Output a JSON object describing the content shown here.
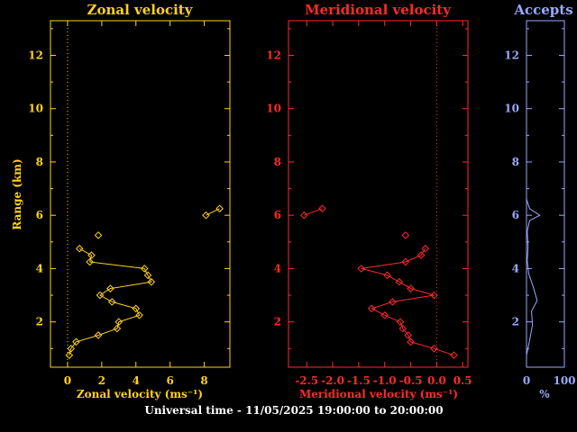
{
  "footer": "Universal time - 11/05/2025 19:00:00 to 20:00:00",
  "colors": {
    "zonal": "#ffd21e",
    "meridional": "#ff2a2a",
    "accepts": "#9aa8ff",
    "background": "#000000"
  },
  "chart_data": [
    {
      "type": "line",
      "title": "Zonal velocity",
      "xlabel": "Zonal velocity (ms⁻¹)",
      "ylabel": "Range (km)",
      "xlim": [
        -1,
        9.5
      ],
      "ylim": [
        0.3,
        13.3
      ],
      "xticks": [
        0,
        2,
        4,
        6,
        8
      ],
      "yticks": [
        2,
        4,
        6,
        8,
        10,
        12
      ],
      "zero_line": "dotted",
      "series": [
        {
          "points": [
            [
              0.1,
              0.75
            ],
            [
              0.2,
              1.0
            ],
            [
              0.5,
              1.25
            ],
            [
              1.8,
              1.5
            ],
            [
              2.9,
              1.75
            ],
            [
              3.0,
              2.0
            ],
            [
              4.2,
              2.25
            ],
            [
              4.0,
              2.5
            ],
            [
              2.6,
              2.75
            ],
            [
              1.9,
              3.0
            ],
            [
              2.5,
              3.25
            ],
            [
              4.9,
              3.5
            ],
            [
              4.7,
              3.75
            ],
            [
              4.5,
              4.0
            ],
            [
              1.3,
              4.25
            ],
            [
              1.4,
              4.5
            ],
            [
              0.7,
              4.75
            ]
          ],
          "isolated": [
            [
              1.8,
              5.25
            ]
          ],
          "upper": [
            [
              8.1,
              6.0
            ],
            [
              8.9,
              6.25
            ]
          ]
        }
      ]
    },
    {
      "type": "line",
      "title": "Meridional velocity",
      "xlabel": "Meridional velocity (ms⁻¹)",
      "ylabel": "",
      "xlim": [
        -2.85,
        0.6
      ],
      "ylim": [
        0.3,
        13.3
      ],
      "xticks": [
        -2.5,
        -2.0,
        -1.5,
        -1.0,
        -0.5,
        0.0,
        0.5
      ],
      "xticklabels": [
        "-2.5",
        "-2.0",
        "-1.5",
        "-1.0",
        "-0.5",
        "0.0",
        "0.5"
      ],
      "yticks": [
        2,
        4,
        6,
        8,
        10,
        12
      ],
      "zero_line": "dotted",
      "series": [
        {
          "points": [
            [
              0.33,
              0.75
            ],
            [
              -0.05,
              1.0
            ],
            [
              -0.5,
              1.25
            ],
            [
              -0.55,
              1.5
            ],
            [
              -0.65,
              1.75
            ],
            [
              -0.7,
              2.0
            ],
            [
              -1.0,
              2.25
            ],
            [
              -1.25,
              2.5
            ],
            [
              -0.85,
              2.75
            ],
            [
              -0.05,
              3.0
            ],
            [
              -0.5,
              3.25
            ],
            [
              -0.72,
              3.5
            ],
            [
              -0.95,
              3.75
            ],
            [
              -1.45,
              4.0
            ],
            [
              -0.6,
              4.25
            ],
            [
              -0.3,
              4.5
            ],
            [
              -0.22,
              4.75
            ]
          ],
          "isolated": [
            [
              -0.6,
              5.25
            ]
          ],
          "upper": [
            [
              -2.55,
              6.0
            ],
            [
              -2.2,
              6.25
            ]
          ]
        }
      ]
    },
    {
      "type": "line",
      "title": "Accepts",
      "xlabel": "%",
      "ylabel": "",
      "xlim": [
        0,
        100
      ],
      "ylim": [
        0.3,
        13.3
      ],
      "xticks": [
        0,
        100
      ],
      "yticks": [
        2,
        4,
        6,
        8,
        10,
        12
      ],
      "series": [
        {
          "points": [
            [
              0,
              0.75
            ],
            [
              8,
              1.3
            ],
            [
              16,
              1.9
            ],
            [
              13,
              2.4
            ],
            [
              28,
              2.8
            ],
            [
              18,
              3.3
            ],
            [
              6,
              3.8
            ],
            [
              2,
              4.3
            ],
            [
              4,
              4.8
            ],
            [
              2,
              5.4
            ],
            [
              8,
              5.8
            ],
            [
              35,
              6.0
            ],
            [
              8,
              6.25
            ],
            [
              0,
              6.6
            ]
          ]
        }
      ]
    }
  ]
}
